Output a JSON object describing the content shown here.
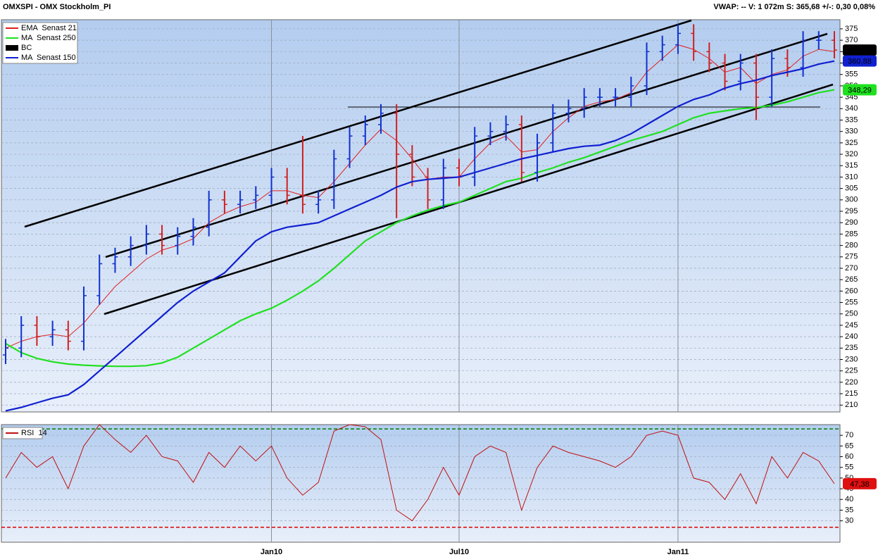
{
  "header": {
    "title": "OMXSPI - OMX Stockholm_PI",
    "stats": "VWAP: --   V: 1 072m   S: 365,68   +/-: 0,30   0,08%"
  },
  "chart_data": [
    {
      "type": "ohlc",
      "legend": "upper left",
      "grid": true,
      "categories": [
        null,
        null,
        null,
        null,
        null,
        null,
        null,
        null,
        null,
        null,
        null,
        null,
        null,
        null,
        null,
        null,
        null,
        "Jan10",
        null,
        null,
        null,
        null,
        null,
        null,
        null,
        null,
        null,
        null,
        null,
        "Jul10",
        null,
        null,
        null,
        null,
        null,
        null,
        null,
        null,
        null,
        null,
        null,
        null,
        null,
        "Jan11",
        null,
        null,
        null,
        null,
        null,
        null,
        null,
        null,
        null,
        null
      ],
      "ylim": [
        207,
        379
      ],
      "yticks": [
        210,
        215,
        220,
        225,
        230,
        235,
        240,
        245,
        250,
        255,
        260,
        265,
        270,
        275,
        280,
        285,
        290,
        295,
        300,
        305,
        310,
        315,
        320,
        325,
        330,
        335,
        340,
        345,
        350,
        355,
        360,
        365,
        370,
        375
      ],
      "series": [
        {
          "name": "EMA  Senast 21",
          "type": "line",
          "color": "#e02020",
          "values": [
            235,
            238,
            240,
            241,
            240,
            246,
            254,
            262,
            268,
            274,
            278,
            280,
            283,
            290,
            294,
            297,
            299,
            304,
            304,
            302,
            301,
            308,
            316,
            324,
            331,
            326,
            318,
            309,
            310,
            310,
            318,
            325,
            328,
            321,
            322,
            330,
            336,
            341,
            343,
            344,
            347,
            356,
            362,
            368,
            366,
            362,
            356,
            358,
            351,
            355,
            357,
            363,
            366,
            365
          ]
        },
        {
          "name": "MA  Senast 250",
          "type": "line",
          "color": "#20e020",
          "last_label": "348,29",
          "label_bg": "#20e020",
          "label_fg": "#000000",
          "values": [
            237,
            233,
            230.5,
            229,
            228,
            227.5,
            227.2,
            227,
            227,
            227.3,
            228.5,
            231,
            235,
            239,
            243,
            247,
            250,
            252.5,
            256,
            260,
            264.5,
            270,
            276,
            282,
            286,
            290,
            293,
            295.5,
            297.5,
            299,
            302,
            305,
            308,
            309.5,
            312,
            314,
            316.5,
            318.5,
            321,
            323.5,
            326,
            328,
            330,
            333,
            336,
            338,
            339,
            340,
            340.5,
            341.5,
            343,
            345,
            347,
            348.29
          ]
        },
        {
          "name": "BC",
          "type": "bars",
          "color": "#000000",
          "up_color": "#1030d0",
          "down_color": "#d02020",
          "last_label": "365,68",
          "label_bg": "#000000",
          "label_fg": "#ffffff",
          "open": [
            232,
            235,
            245,
            240,
            243,
            238,
            258,
            272,
            275,
            280,
            285,
            280,
            284,
            288,
            300,
            298,
            300,
            302,
            310,
            302,
            298,
            300,
            318,
            328,
            333,
            338,
            320,
            310,
            300,
            314,
            310,
            328,
            330,
            333,
            312,
            325,
            338,
            340,
            345,
            345,
            345,
            350,
            365,
            368,
            373,
            365,
            360,
            352,
            360,
            345,
            362,
            358,
            370,
            370
          ],
          "high": [
            239,
            249,
            249,
            247,
            247,
            262,
            276,
            279,
            284,
            289,
            289,
            288,
            292,
            304,
            304,
            304,
            306,
            314,
            314,
            328,
            304,
            322,
            332,
            337,
            342,
            342,
            324,
            314,
            318,
            318,
            332,
            334,
            337,
            337,
            329,
            342,
            344,
            349,
            349,
            349,
            354,
            369,
            372,
            377,
            377,
            369,
            364,
            364,
            364,
            366,
            366,
            374,
            374,
            374
          ],
          "low": [
            228,
            231,
            236,
            236,
            234,
            234,
            254,
            268,
            271,
            276,
            276,
            276,
            280,
            284,
            294,
            294,
            296,
            298,
            298,
            294,
            294,
            296,
            314,
            324,
            329,
            292,
            306,
            296,
            296,
            306,
            306,
            324,
            326,
            308,
            308,
            321,
            334,
            336,
            341,
            341,
            341,
            346,
            361,
            364,
            361,
            356,
            348,
            348,
            335,
            341,
            354,
            354,
            366,
            362
          ],
          "close": [
            235,
            245,
            240,
            243,
            238,
            258,
            272,
            275,
            280,
            285,
            280,
            284,
            288,
            300,
            298,
            300,
            302,
            310,
            302,
            298,
            300,
            318,
            328,
            333,
            338,
            320,
            310,
            300,
            314,
            310,
            328,
            330,
            333,
            312,
            325,
            338,
            340,
            345,
            345,
            345,
            350,
            365,
            368,
            373,
            365,
            360,
            352,
            360,
            345,
            362,
            358,
            370,
            370,
            365.68
          ]
        },
        {
          "name": "MA  Senast 150",
          "type": "line",
          "color": "#1020d0",
          "last_label": "360,88",
          "label_bg": "#1020d0",
          "label_fg": "#ffffff",
          "values": [
            207.5,
            209,
            211,
            213,
            214.5,
            219,
            225,
            231,
            237,
            243,
            249,
            255,
            260,
            264,
            268,
            275,
            282,
            286,
            288,
            289,
            290,
            293,
            296,
            299,
            302,
            305.6,
            308,
            309,
            309.5,
            310,
            312,
            314,
            316,
            318,
            319.5,
            321,
            322.5,
            323.5,
            324,
            326,
            329,
            333,
            337,
            341,
            344,
            346,
            349,
            351,
            352.5,
            354.5,
            356,
            357.5,
            359.5,
            360.88
          ]
        }
      ]
    },
    {
      "type": "line",
      "legend": "upper left",
      "grid": true,
      "ylim": [
        20,
        75
      ],
      "yticks": [
        30,
        35,
        40,
        45,
        50,
        55,
        60,
        65,
        70
      ],
      "levels": [
        {
          "value": 73,
          "color": "#008000"
        },
        {
          "value": 27,
          "color": "#e00000"
        }
      ],
      "series": [
        {
          "name": "RSI  14",
          "type": "line",
          "color": "#c01010",
          "last_label": "47,38",
          "label_bg": "#e01010",
          "label_fg": "#000000",
          "values": [
            50,
            62,
            55,
            60,
            45,
            65,
            75,
            68,
            62,
            70,
            60,
            58,
            48,
            62,
            55,
            65,
            58,
            65,
            50,
            42,
            48,
            72,
            75,
            74,
            68,
            35,
            30,
            40,
            55,
            42,
            60,
            65,
            62,
            35,
            55,
            65,
            62,
            60,
            58,
            55,
            60,
            70,
            72,
            70,
            50,
            48,
            40,
            52,
            38,
            60,
            50,
            62,
            58,
            47.38
          ]
        }
      ]
    }
  ]
}
